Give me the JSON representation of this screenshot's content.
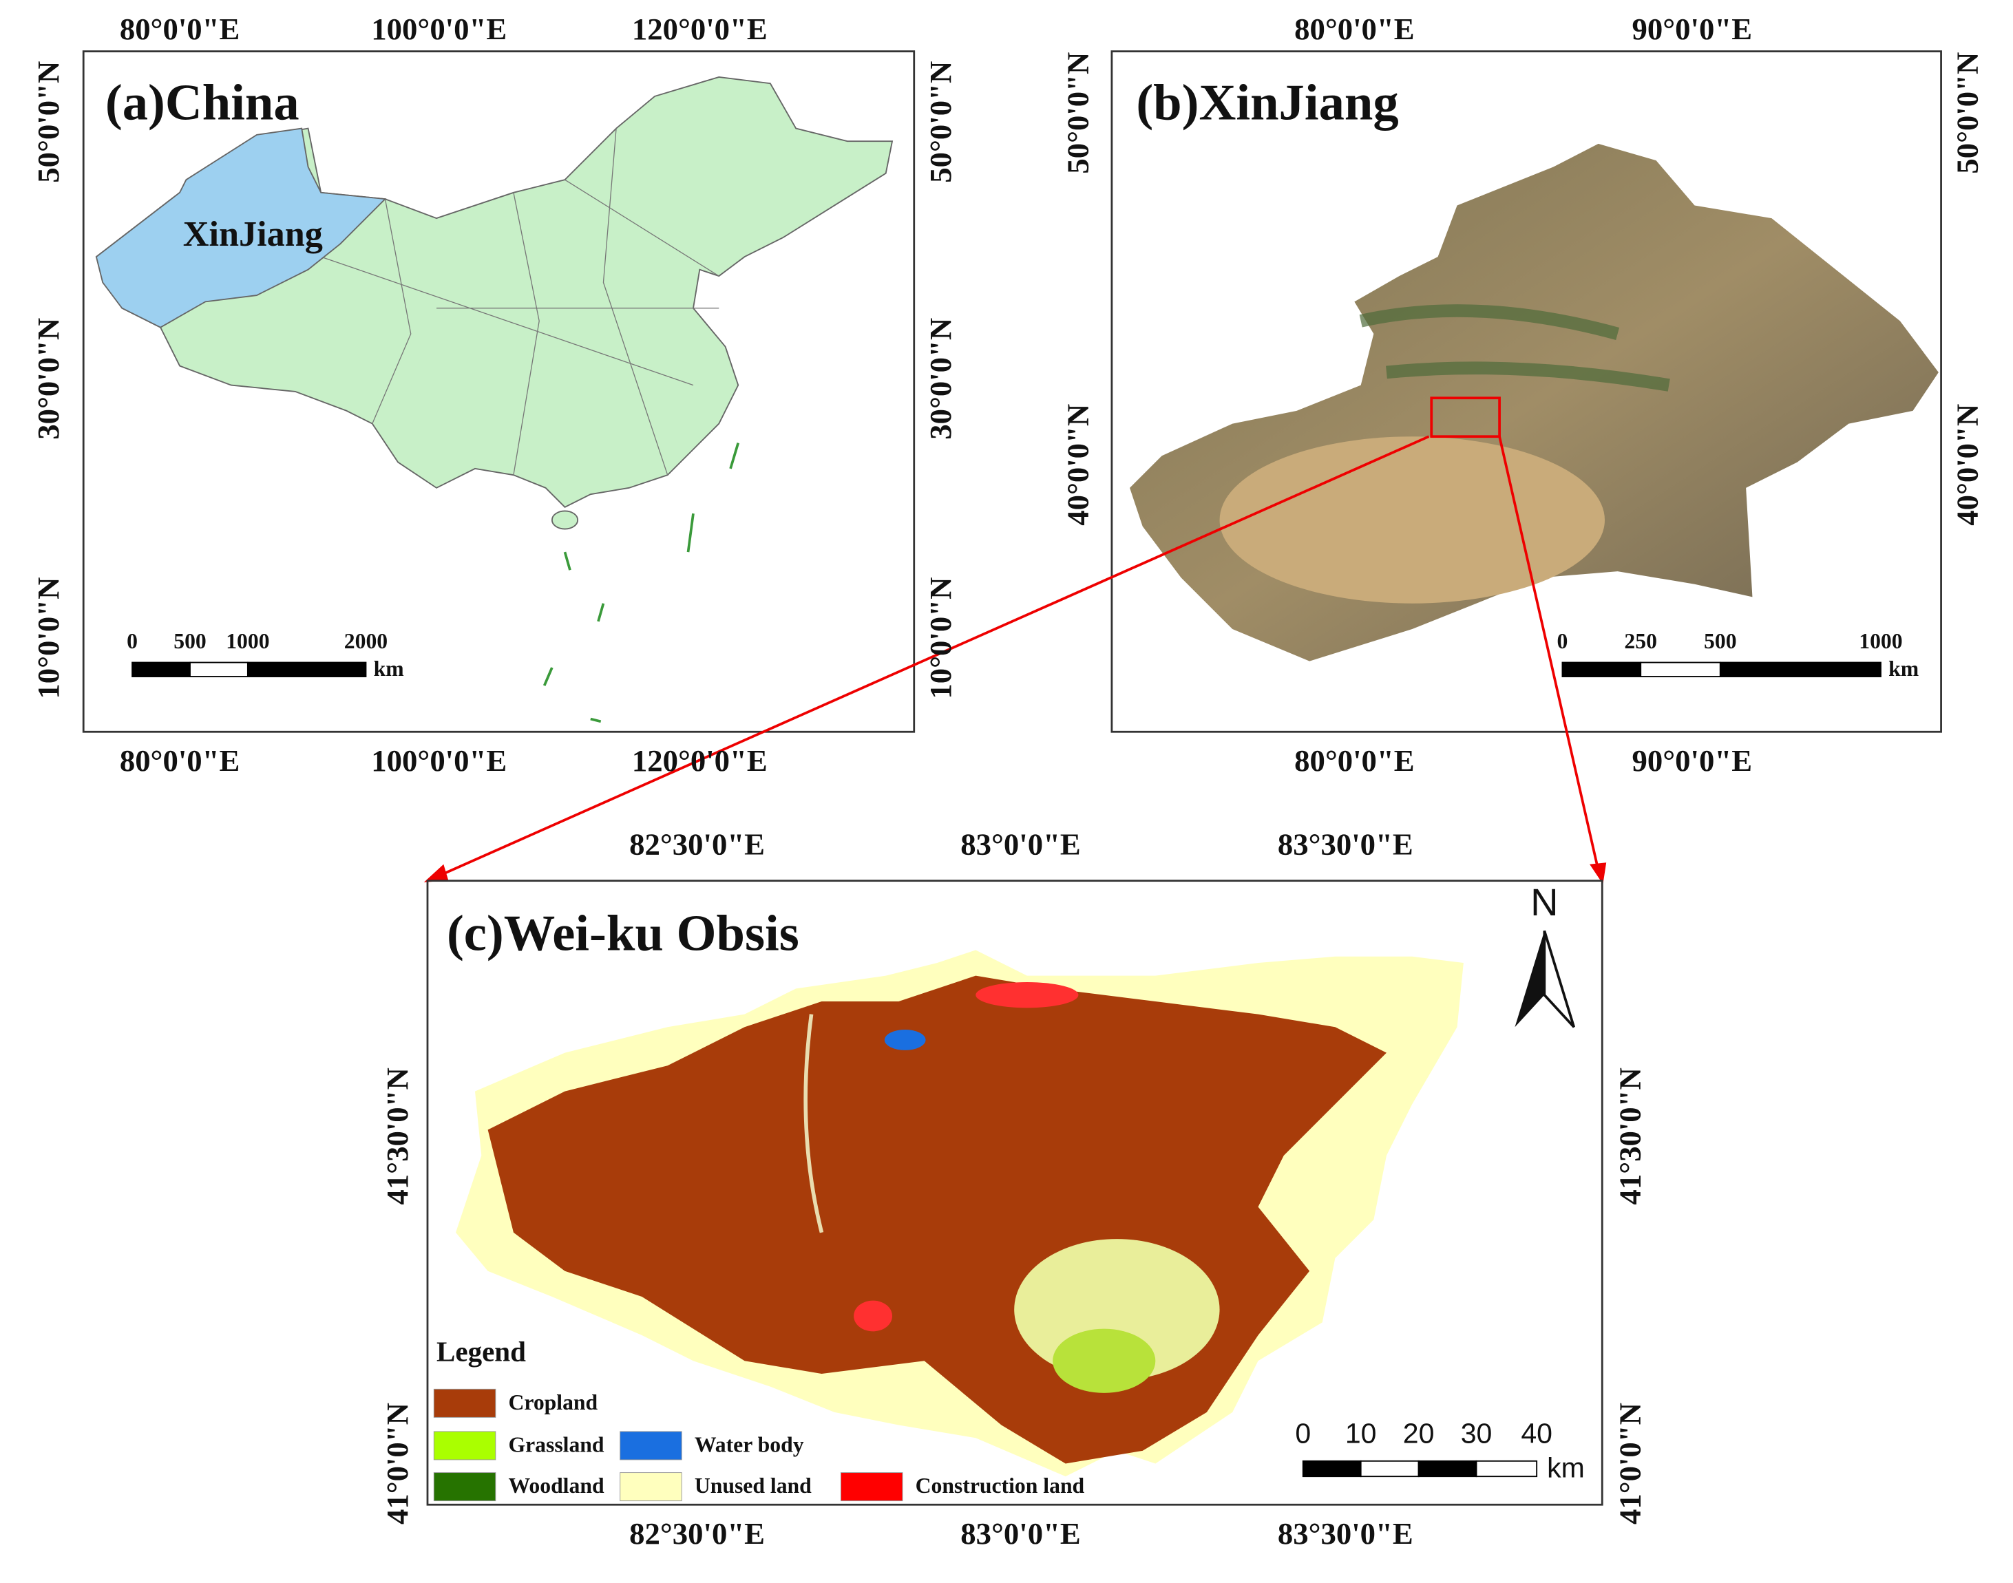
{
  "panels": [
    {
      "title": "(a)China",
      "region_label": "XinJiang",
      "lon_labels": [
        "80°0'0\"E",
        "100°0'0\"E",
        "120°0'0\"E"
      ],
      "lat_labels": [
        "50°0'0\"N",
        "30°0'0\"N",
        "10°0'0\"N"
      ],
      "scale_labels": [
        "0",
        "500",
        "1000",
        "2000"
      ],
      "scale_unit": "km"
    },
    {
      "title": "(b)XinJiang",
      "lon_labels": [
        "80°0'0\"E",
        "90°0'0\"E"
      ],
      "lat_labels": [
        "50°0'0\"N",
        "40°0'0\"N"
      ],
      "scale_labels": [
        "0",
        "250",
        "500",
        "1000"
      ],
      "scale_unit": "km"
    },
    {
      "title": "(c)Wei-ku Obsis",
      "north": "N",
      "lon_labels": [
        "82°30'0\"E",
        "83°0'0\"E",
        "83°30'0\"E"
      ],
      "lat_labels": [
        "41°30'0\"N",
        "41°0'0\"N"
      ],
      "scale_labels": [
        "0",
        "10",
        "20",
        "30",
        "40"
      ],
      "scale_unit": "km"
    }
  ],
  "legend": {
    "title": "Legend",
    "items": [
      {
        "name": "Cropland",
        "color": "#a83c0a"
      },
      {
        "name": "Grassland",
        "color": "#aaff00"
      },
      {
        "name": "Water body",
        "color": "#1a6fe0"
      },
      {
        "name": "Woodland",
        "color": "#267300"
      },
      {
        "name": "Unused land",
        "color": "#ffffbe"
      },
      {
        "name": "Construction land",
        "color": "#ff0000"
      }
    ]
  }
}
